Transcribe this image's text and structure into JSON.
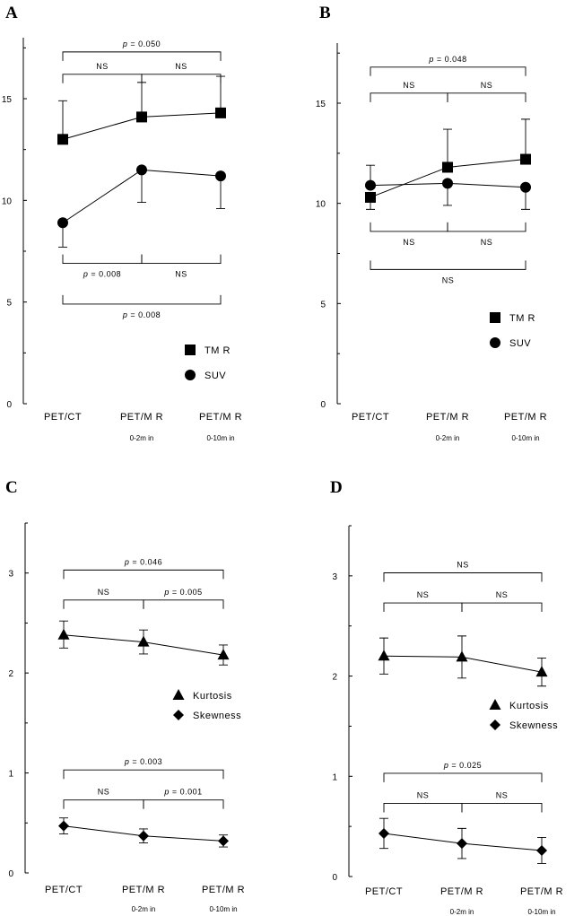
{
  "chart_data": [
    {
      "panel": "A",
      "type": "line",
      "ylim": [
        0,
        18
      ],
      "yticks": [
        "0",
        "5",
        "10",
        "15"
      ],
      "categories": [
        "PET/CT",
        "PET/M R",
        "PET/M R"
      ],
      "category_sublabels": [
        "",
        "0-2m in",
        "0-10m in"
      ],
      "series": [
        {
          "name": "TM R",
          "marker": "square",
          "values": [
            13.0,
            14.1,
            14.3
          ],
          "err_lower": [
            0,
            0,
            0
          ],
          "err_upper": [
            1.9,
            1.7,
            1.8
          ]
        },
        {
          "name": "SUV",
          "marker": "circle",
          "values": [
            8.9,
            11.5,
            11.2
          ],
          "err_lower": [
            1.2,
            1.6,
            1.6
          ],
          "err_upper": [
            0,
            0,
            0
          ]
        }
      ],
      "brackets": [
        {
          "from": 0,
          "to": 2,
          "y": 17.3,
          "side": "top",
          "label": "p = 0.050"
        },
        {
          "from": 0,
          "to": 1,
          "y": 16.2,
          "side": "top",
          "label": "NS"
        },
        {
          "from": 1,
          "to": 2,
          "y": 16.2,
          "side": "top",
          "label": "NS"
        },
        {
          "from": 0,
          "to": 1,
          "y": 6.9,
          "side": "bottom",
          "label": "p = 0.008"
        },
        {
          "from": 1,
          "to": 2,
          "y": 6.9,
          "side": "bottom",
          "label": "NS"
        },
        {
          "from": 0,
          "to": 2,
          "y": 4.9,
          "side": "bottom",
          "label": "p = 0.008"
        }
      ]
    },
    {
      "panel": "B",
      "type": "line",
      "ylim": [
        0,
        18
      ],
      "yticks": [
        "0",
        "5",
        "10",
        "15"
      ],
      "categories": [
        "PET/CT",
        "PET/M R",
        "PET/M R"
      ],
      "category_sublabels": [
        "",
        "0-2m in",
        "0-10m in"
      ],
      "series": [
        {
          "name": "TM R",
          "marker": "square",
          "values": [
            10.3,
            11.8,
            12.2
          ],
          "err_lower": [
            0.6,
            0,
            0
          ],
          "err_upper": [
            0,
            1.9,
            2.0
          ]
        },
        {
          "name": "SUV",
          "marker": "circle",
          "values": [
            10.9,
            11.0,
            10.8
          ],
          "err_lower": [
            0,
            1.1,
            1.1
          ],
          "err_upper": [
            1.0,
            0,
            0
          ]
        }
      ],
      "brackets": [
        {
          "from": 0,
          "to": 2,
          "y": 16.8,
          "side": "top",
          "label": "p = 0.048"
        },
        {
          "from": 0,
          "to": 1,
          "y": 15.5,
          "side": "top",
          "label": "NS"
        },
        {
          "from": 1,
          "to": 2,
          "y": 15.5,
          "side": "top",
          "label": "NS"
        },
        {
          "from": 0,
          "to": 1,
          "y": 8.6,
          "side": "bottom",
          "label": "NS"
        },
        {
          "from": 1,
          "to": 2,
          "y": 8.6,
          "side": "bottom",
          "label": "NS"
        },
        {
          "from": 0,
          "to": 2,
          "y": 6.7,
          "side": "bottom",
          "label": "NS"
        }
      ]
    },
    {
      "panel": "C",
      "type": "line",
      "ylim": [
        0,
        3.5
      ],
      "yticks": [
        "0",
        "1",
        "2",
        "3"
      ],
      "categories": [
        "PET/CT",
        "PET/M R",
        "PET/M R"
      ],
      "category_sublabels": [
        "",
        "0-2m in",
        "0-10m in"
      ],
      "series": [
        {
          "name": "Kurtosis",
          "marker": "triangle",
          "values": [
            2.38,
            2.31,
            2.18
          ],
          "err_lower": [
            0.13,
            0.12,
            0.1
          ],
          "err_upper": [
            0.14,
            0.12,
            0.1
          ]
        },
        {
          "name": "Skewness",
          "marker": "diamond",
          "values": [
            0.47,
            0.37,
            0.32
          ],
          "err_lower": [
            0.08,
            0.07,
            0.06
          ],
          "err_upper": [
            0.08,
            0.07,
            0.06
          ]
        }
      ],
      "brackets": [
        {
          "from": 0,
          "to": 2,
          "y": 3.03,
          "side": "top",
          "label": "p = 0.046"
        },
        {
          "from": 0,
          "to": 1,
          "y": 2.73,
          "side": "top",
          "label": "NS"
        },
        {
          "from": 1,
          "to": 2,
          "y": 2.73,
          "side": "top",
          "label": "p = 0.005"
        },
        {
          "from": 0,
          "to": 2,
          "y": 1.03,
          "side": "top",
          "label": "p = 0.003"
        },
        {
          "from": 0,
          "to": 1,
          "y": 0.73,
          "side": "top",
          "label": "NS"
        },
        {
          "from": 1,
          "to": 2,
          "y": 0.73,
          "side": "top",
          "label": "p = 0.001"
        }
      ]
    },
    {
      "panel": "D",
      "type": "line",
      "ylim": [
        0,
        3.5
      ],
      "yticks": [
        "0",
        "1",
        "2",
        "3"
      ],
      "categories": [
        "PET/CT",
        "PET/M R",
        "PET/M R"
      ],
      "category_sublabels": [
        "",
        "0-2m in",
        "0-10m in"
      ],
      "series": [
        {
          "name": "Kurtosis",
          "marker": "triangle",
          "values": [
            2.2,
            2.19,
            2.04
          ],
          "err_lower": [
            0.18,
            0.21,
            0.14
          ],
          "err_upper": [
            0.18,
            0.21,
            0.14
          ]
        },
        {
          "name": "Skewness",
          "marker": "diamond",
          "values": [
            0.43,
            0.33,
            0.26
          ],
          "err_lower": [
            0.15,
            0.15,
            0.13
          ],
          "err_upper": [
            0.15,
            0.15,
            0.13
          ]
        }
      ],
      "brackets": [
        {
          "from": 0,
          "to": 2,
          "y": 3.03,
          "side": "top",
          "label": "NS"
        },
        {
          "from": 0,
          "to": 1,
          "y": 2.73,
          "side": "top",
          "label": "NS"
        },
        {
          "from": 1,
          "to": 2,
          "y": 2.73,
          "side": "top",
          "label": "NS"
        },
        {
          "from": 0,
          "to": 2,
          "y": 1.03,
          "side": "top",
          "label": "p = 0.025"
        },
        {
          "from": 0,
          "to": 1,
          "y": 0.73,
          "side": "top",
          "label": "NS"
        },
        {
          "from": 1,
          "to": 2,
          "y": 0.73,
          "side": "top",
          "label": "NS"
        }
      ]
    }
  ]
}
